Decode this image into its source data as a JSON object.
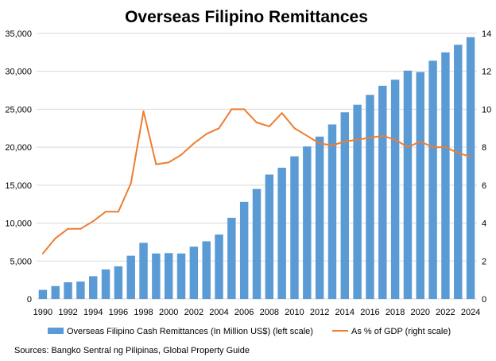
{
  "chart_data": {
    "type": "bar",
    "title": "Overseas Filipino Remittances",
    "categories": [
      1990,
      1991,
      1992,
      1993,
      1994,
      1995,
      1996,
      1997,
      1998,
      1999,
      2000,
      2001,
      2002,
      2003,
      2004,
      2005,
      2006,
      2007,
      2008,
      2009,
      2010,
      2011,
      2012,
      2013,
      2014,
      2015,
      2016,
      2017,
      2018,
      2019,
      2020,
      2021,
      2022,
      2023,
      2024
    ],
    "x_tick_labels": [
      "1990",
      "1992",
      "1994",
      "1996",
      "1998",
      "2000",
      "2002",
      "2004",
      "2006",
      "2008",
      "2010",
      "2012",
      "2014",
      "2016",
      "2018",
      "2020",
      "2022",
      "2024"
    ],
    "y_left": {
      "ylim": [
        0,
        35000
      ],
      "ticks": [
        "0",
        "5,000",
        "10,000",
        "15,000",
        "20,000",
        "25,000",
        "30,000",
        "35,000"
      ]
    },
    "y_right": {
      "ylim": [
        0,
        14
      ],
      "ticks": [
        "0",
        "2",
        "4",
        "6",
        "8",
        "10",
        "12",
        "14"
      ]
    },
    "grid": "horizontal",
    "legend_position": "bottom",
    "series": [
      {
        "name": "Overseas Filipino Cash Remittances (In Million US$) (left scale)",
        "type": "bar",
        "axis": "left",
        "color": "#5B9BD5",
        "values": [
          1200,
          1700,
          2200,
          2300,
          3000,
          3900,
          4300,
          5700,
          7400,
          6000,
          6050,
          6000,
          6900,
          7600,
          8500,
          10700,
          12800,
          14500,
          16400,
          17300,
          18800,
          20100,
          21400,
          23000,
          24600,
          25600,
          26900,
          28100,
          28900,
          30100,
          29900,
          31400,
          32500,
          33500,
          34500
        ]
      },
      {
        "name": "As % of GDP (right scale)",
        "type": "line",
        "axis": "right",
        "color": "#ED7D31",
        "values": [
          2.4,
          3.2,
          3.7,
          3.7,
          4.1,
          4.6,
          4.6,
          6.1,
          9.9,
          7.1,
          7.2,
          7.6,
          8.2,
          8.7,
          9.0,
          10.0,
          10.0,
          9.3,
          9.1,
          9.8,
          9.0,
          8.6,
          8.2,
          8.1,
          8.3,
          8.4,
          8.5,
          8.6,
          8.4,
          8.0,
          8.3,
          8.0,
          8.0,
          7.7,
          7.5
        ]
      }
    ],
    "source": "Sources: Bangko Sentral ng Pilipinas, Global Property Guide"
  }
}
